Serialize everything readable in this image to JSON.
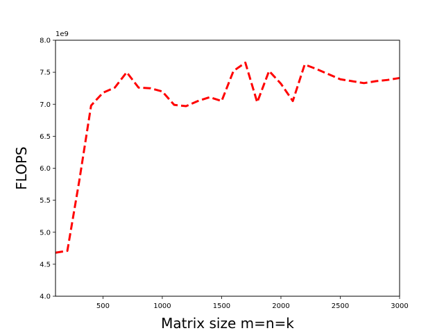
{
  "chart_data": {
    "type": "line",
    "title": "",
    "xlabel": "Matrix size m=n=k",
    "ylabel": "FLOPS",
    "y_offset_label": "1e9",
    "xlim": [
      100,
      3000
    ],
    "ylim": [
      4.0,
      8.0
    ],
    "x_ticks": [
      500,
      1000,
      1500,
      2000,
      2500,
      3000
    ],
    "x_tick_labels": [
      "500",
      "1000",
      "1500",
      "2000",
      "2500",
      "3000"
    ],
    "y_ticks": [
      4.0,
      4.5,
      5.0,
      5.5,
      6.0,
      6.5,
      7.0,
      7.5,
      8.0
    ],
    "y_tick_labels": [
      "4.0",
      "4.5",
      "5.0",
      "5.5",
      "6.0",
      "6.5",
      "7.0",
      "7.5",
      "8.0"
    ],
    "grid": false,
    "legend": "none",
    "series": [
      {
        "color": "#ff0000",
        "line_style": "dashed",
        "x": [
          100,
          200,
          300,
          400,
          500,
          600,
          700,
          800,
          900,
          1000,
          1100,
          1200,
          1300,
          1400,
          1500,
          1600,
          1700,
          1800,
          1900,
          2000,
          2100,
          2200,
          2300,
          2400,
          2500,
          2600,
          2700,
          2800,
          2900,
          3000
        ],
        "values": [
          4.68,
          4.71,
          5.8,
          6.98,
          7.18,
          7.26,
          7.5,
          7.26,
          7.25,
          7.2,
          6.99,
          6.97,
          7.05,
          7.11,
          7.05,
          7.52,
          7.65,
          7.03,
          7.52,
          7.32,
          7.05,
          7.62,
          7.55,
          7.47,
          7.39,
          7.36,
          7.33,
          7.36,
          7.38,
          7.41
        ]
      }
    ]
  }
}
